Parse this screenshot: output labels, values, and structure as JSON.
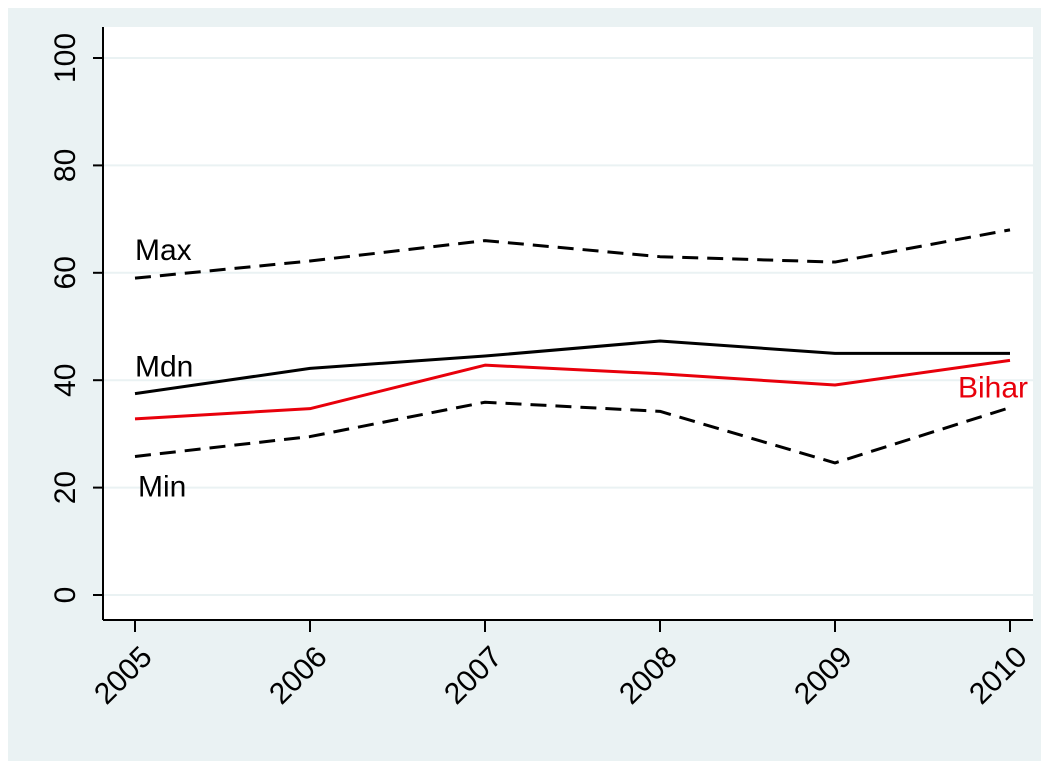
{
  "chart_data": {
    "type": "line",
    "x": [
      2005,
      2006,
      2007,
      2008,
      2009,
      2010
    ],
    "xlim": [
      2005,
      2010
    ],
    "ylim": [
      0,
      100
    ],
    "yticks": [
      0,
      20,
      40,
      60,
      80,
      100
    ],
    "grid": true,
    "colors": {
      "background": "#eaf2f3",
      "plot_background": "#ffffff",
      "grid": "#eaf2f3",
      "axis": "#000000",
      "highlight": "#e8000b"
    },
    "series": [
      {
        "name": "Max",
        "values": [
          59,
          62.2,
          66,
          63,
          62,
          68
        ],
        "style": "dashed",
        "color": "#000000"
      },
      {
        "name": "Mdn",
        "values": [
          37.5,
          42.2,
          44.5,
          47.3,
          45,
          45
        ],
        "style": "solid",
        "color": "#000000"
      },
      {
        "name": "Bihar",
        "values": [
          32.8,
          34.7,
          42.8,
          41.2,
          39.1,
          43.7
        ],
        "style": "solid",
        "color": "#e8000b"
      },
      {
        "name": "Min",
        "values": [
          25.8,
          29.5,
          35.9,
          34.2,
          24.6,
          34.9
        ],
        "style": "dashed",
        "color": "#000000"
      }
    ]
  }
}
